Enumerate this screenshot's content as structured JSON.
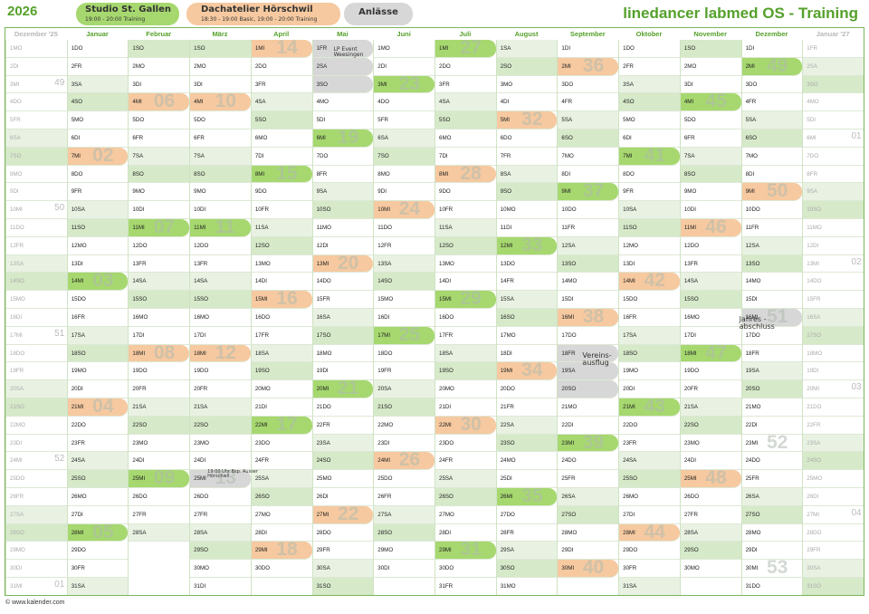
{
  "header": {
    "year": "2026",
    "tags": [
      {
        "name": "Studio St. Gallen",
        "line2": "19:00 - 20:00 Training"
      },
      {
        "name": "Dachatelier Hörschwil",
        "line2": "18:30 - 19:00 Basic, 19:00 - 20:00 Training"
      },
      {
        "name": "Anlässe",
        "line2": ""
      }
    ],
    "brand": "linedancer labmed OS - Training"
  },
  "footer": "© www.kalender.com",
  "notes": {
    "lp_event": "LP Event Weesingen",
    "ruhli": "19:00 Uhr Bsp. Ausser Hörschwil",
    "vereinsausflug": "Vereins- ausflug",
    "jahresabschluss": "Jahres - abschluss"
  },
  "colors": {
    "green": "#a6d86f",
    "orange": "#f6c9a0",
    "grey": "#d7d7d7",
    "brand": "#55a12b"
  },
  "months": [
    {
      "label": "Dezember '25",
      "dim": true,
      "start": 1,
      "days": 31,
      "firstDow": 1,
      "green": [],
      "orange": [],
      "grey": []
    },
    {
      "label": "Januar",
      "start": 1,
      "days": 31,
      "firstDow": 4,
      "green": [
        14,
        28
      ],
      "orange": [
        7,
        21
      ],
      "grey": []
    },
    {
      "label": "Februar",
      "start": 1,
      "days": 28,
      "firstDow": 0,
      "green": [
        11,
        25
      ],
      "orange": [
        4,
        18
      ],
      "grey": []
    },
    {
      "label": "März",
      "start": 1,
      "days": 31,
      "firstDow": 0,
      "green": [
        11
      ],
      "orange": [
        4,
        18
      ],
      "grey": [
        25
      ]
    },
    {
      "label": "April",
      "start": 1,
      "days": 30,
      "firstDow": 3,
      "green": [
        8,
        22
      ],
      "orange": [
        1,
        15,
        29
      ],
      "grey": []
    },
    {
      "label": "Mai",
      "start": 1,
      "days": 31,
      "firstDow": 5,
      "green": [
        6,
        20
      ],
      "orange": [
        13,
        27
      ],
      "grey": [
        1,
        2,
        3
      ]
    },
    {
      "label": "Juni",
      "start": 1,
      "days": 30,
      "firstDow": 1,
      "green": [
        3,
        17
      ],
      "orange": [
        10,
        24
      ],
      "grey": []
    },
    {
      "label": "Juli",
      "start": 1,
      "days": 31,
      "firstDow": 3,
      "green": [
        1,
        15,
        29
      ],
      "orange": [
        8,
        22
      ],
      "grey": []
    },
    {
      "label": "August",
      "start": 1,
      "days": 31,
      "firstDow": 6,
      "green": [
        12,
        26
      ],
      "orange": [
        5,
        19
      ],
      "grey": []
    },
    {
      "label": "September",
      "start": 1,
      "days": 30,
      "firstDow": 2,
      "green": [
        9,
        23
      ],
      "orange": [
        2,
        16,
        30
      ],
      "grey": [
        18,
        19,
        20
      ]
    },
    {
      "label": "Oktober",
      "start": 1,
      "days": 31,
      "firstDow": 4,
      "green": [
        7,
        21
      ],
      "orange": [
        14,
        28
      ],
      "grey": []
    },
    {
      "label": "November",
      "start": 1,
      "days": 30,
      "firstDow": 0,
      "green": [
        4,
        18
      ],
      "orange": [
        11,
        25
      ],
      "grey": []
    },
    {
      "label": "Dezember",
      "start": 1,
      "days": 31,
      "firstDow": 2,
      "green": [
        2
      ],
      "orange": [
        9
      ],
      "grey": [
        16
      ]
    },
    {
      "label": "Januar '27",
      "dim": true,
      "start": 1,
      "days": 31,
      "firstDow": 5,
      "green": [],
      "orange": [],
      "grey": []
    }
  ],
  "weekdays": [
    "SO",
    "MO",
    "DI",
    "MI",
    "DO",
    "FR",
    "SA"
  ]
}
